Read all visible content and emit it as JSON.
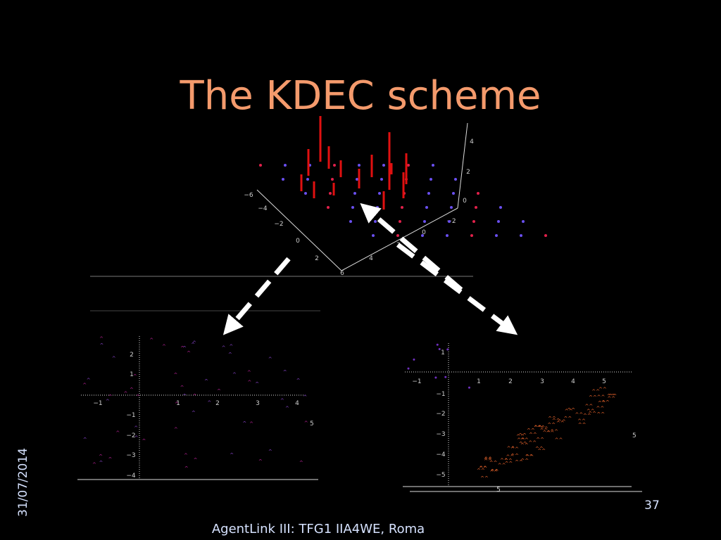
{
  "title": "The KDEC scheme",
  "date": "31/07/2014",
  "page_number": "37",
  "footer": "AgentLink III: TFG1 IIA4WE, Roma",
  "plot_3d": {
    "left_axis_ticks": [
      "−6",
      "−4",
      "−2",
      "0",
      "2",
      "6"
    ],
    "right_axis_ticks": [
      "4",
      "2",
      "0",
      "−2"
    ],
    "vertical_axis_ticks": [
      "4",
      "2",
      "0"
    ]
  },
  "plot_left": {
    "x_ticks": [
      "−1",
      "1",
      "2",
      "3",
      "4"
    ],
    "y_ticks": [
      "2",
      "1",
      "−1",
      "−2",
      "−3",
      "−4"
    ],
    "corner_label": "5"
  },
  "plot_right": {
    "x_ticks": [
      "−1",
      "1",
      "2",
      "3",
      "4",
      "5"
    ],
    "y_ticks": [
      "1",
      "−1",
      "−2",
      "−3",
      "−4",
      "−5"
    ],
    "corner_label": "5",
    "bottom_label": "5"
  }
}
